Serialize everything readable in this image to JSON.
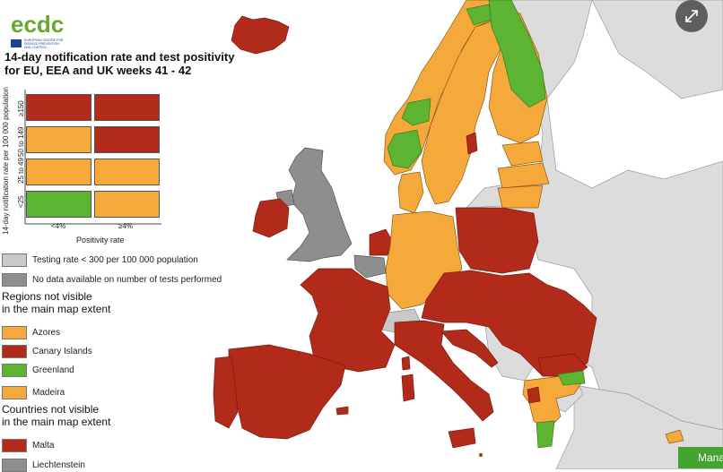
{
  "logo": {
    "wordmark": "ecdc",
    "line1": "EUROPEAN CENTRE FOR",
    "line2": "DISEASE PREVENTION",
    "line3": "AND CONTROL"
  },
  "title_line1": "14-day notification rate and test positivity",
  "title_line2": "for EU, EEA and UK weeks 41 - 42",
  "matrix": {
    "y_axis_label": "14-day notification rate per 100 000 population",
    "x_axis_label": "Positivity rate",
    "row_labels": [
      "≥150",
      "50 to 149",
      "25 to 49",
      "<25"
    ],
    "col_labels": [
      "<4%",
      "≥4%"
    ],
    "cells": [
      [
        "#b22a1a",
        "#b22a1a"
      ],
      [
        "#f5a93a",
        "#b22a1a"
      ],
      [
        "#f5a93a",
        "#f5a93a"
      ],
      [
        "#5cb432",
        "#f5a93a"
      ]
    ]
  },
  "legend": {
    "testing_low": {
      "label": "Testing rate < 300 per 100 000 population",
      "color": "#c9c9c9"
    },
    "no_data": {
      "label": "No data available on number of tests performed",
      "color": "#8e8e8e"
    }
  },
  "regions_heading_1": "Regions not visible",
  "regions_heading_2": "in the main map extent",
  "regions": [
    {
      "name": "Azores",
      "color": "#f5a93a"
    },
    {
      "name": "Canary Islands",
      "color": "#b22a1a"
    },
    {
      "name": "Greenland",
      "color": "#5cb432"
    },
    {
      "name": "Madeira",
      "color": "#f5a93a"
    }
  ],
  "countries_heading_1": "Countries not visible",
  "countries_heading_2": "in the main map extent",
  "countries": [
    {
      "name": "Malta",
      "color": "#b22a1a"
    },
    {
      "name": "Liechtenstein",
      "color": "#8e8e8e"
    }
  ],
  "bottom_button": "Mana",
  "colors": {
    "red": "#b22a1a",
    "orange": "#f5a93a",
    "green": "#5cb432",
    "grey_light": "#c9c9c9",
    "grey_dark": "#8e8e8e",
    "non_eu": "#dcdcdc",
    "sea": "#ffffff"
  }
}
